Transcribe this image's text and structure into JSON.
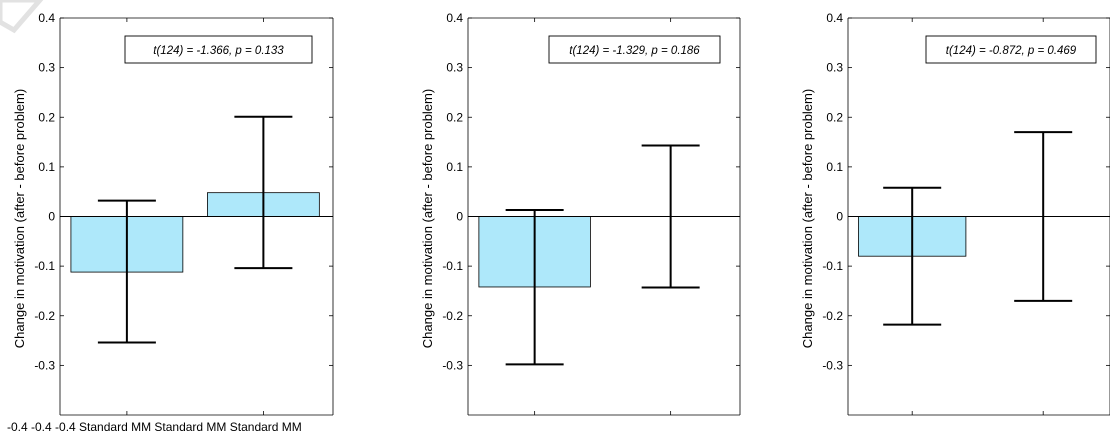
{
  "chart_data": [
    {
      "type": "bar",
      "categories": [
        "Standard",
        "MM"
      ],
      "series": [
        {
          "values": [
            -0.112,
            0.048
          ]
        }
      ],
      "error_bars": {
        "lower": [
          -0.254,
          -0.104
        ],
        "upper": [
          0.032,
          0.201
        ]
      },
      "ylabel": "Change in motivation (after - before problem)",
      "ylim": [
        -0.4,
        0.4
      ],
      "yticks": [
        "-0.3",
        "-0.2",
        "-0.1",
        "0",
        "0.1",
        "0.2",
        "0.3",
        "0.4"
      ],
      "xtick_labels": [
        "-0.4",
        "-0.4",
        "-0.4",
        "Standard",
        "MM",
        "Standard",
        "MM",
        "Standard",
        "MM"
      ],
      "annotation": "t(124) = -1.366, p = 0.133",
      "grid": false,
      "bar_color": "#aee8fa"
    },
    {
      "type": "bar",
      "categories": [
        "Standard",
        "MM"
      ],
      "series": [
        {
          "values": [
            -0.142,
            0.0
          ]
        }
      ],
      "error_bars": {
        "lower": [
          -0.298,
          -0.143
        ],
        "upper": [
          0.013,
          0.143
        ]
      },
      "ylabel": "Change in motivation (after - before problem)",
      "ylim": [
        -0.4,
        0.4
      ],
      "yticks": [
        "-0.3",
        "-0.2",
        "-0.1",
        "0",
        "0.1",
        "0.2",
        "0.3",
        "0.4"
      ],
      "annotation": "t(124) = -1.329, p = 0.186",
      "grid": false,
      "bar_color": "#aee8fa"
    },
    {
      "type": "bar",
      "categories": [
        "Standard",
        "MM"
      ],
      "series": [
        {
          "values": [
            -0.08,
            0.0
          ]
        }
      ],
      "error_bars": {
        "lower": [
          -0.218,
          -0.17
        ],
        "upper": [
          0.058,
          0.17
        ]
      },
      "ylabel": "Change in motivation (after - before problem)",
      "ylim": [
        -0.4,
        0.4
      ],
      "yticks": [
        "-0.3",
        "-0.2",
        "-0.1",
        "0",
        "0.1",
        "0.2",
        "0.3",
        "0.4"
      ],
      "annotation": "t(124) = -0.872, p = 0.469",
      "grid": false,
      "bar_color": "#aee8fa"
    }
  ],
  "watermark_color": "#d6d6d6"
}
